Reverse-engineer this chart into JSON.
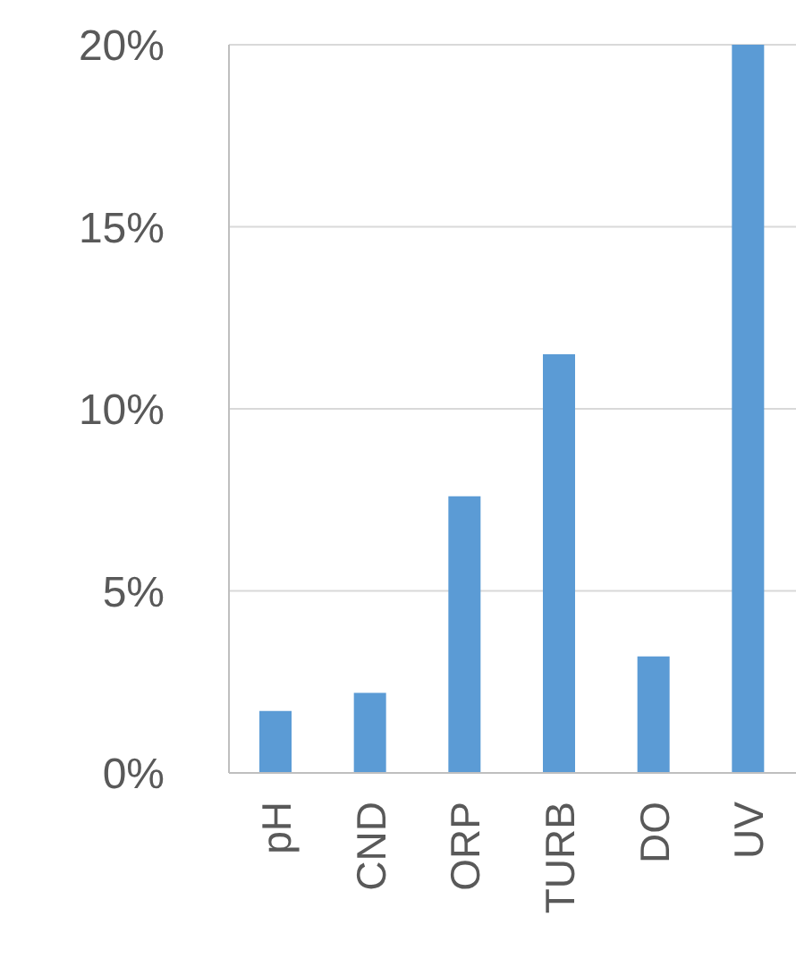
{
  "chart_data": {
    "type": "bar",
    "categories": [
      "pH",
      "CND",
      "ORP",
      "TURB",
      "DO",
      "UV"
    ],
    "values": [
      1.7,
      2.2,
      7.6,
      11.5,
      3.2,
      20
    ],
    "color": "#5b9bd5",
    "ylim": [
      0,
      20
    ],
    "yticks": [
      {
        "value": 0,
        "label": "0%"
      },
      {
        "value": 5,
        "label": "5%"
      },
      {
        "value": 10,
        "label": "10%"
      },
      {
        "value": 15,
        "label": "15%"
      },
      {
        "value": 20,
        "label": "20%"
      }
    ],
    "grid": "y"
  }
}
